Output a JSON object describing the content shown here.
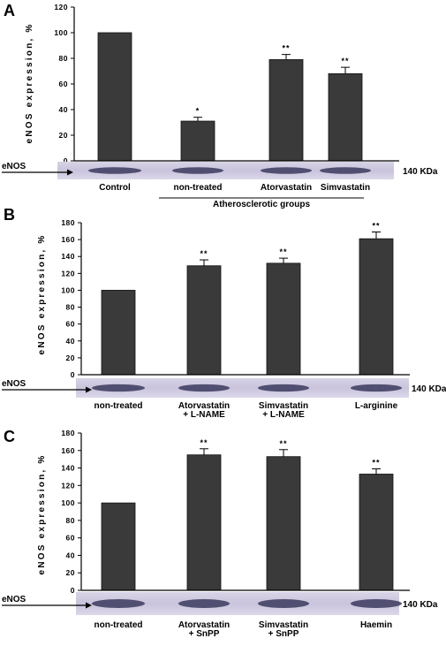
{
  "chart_data": [
    {
      "type": "bar",
      "panel": "A",
      "ylabel": "eNOS expression, %",
      "ylim": [
        0,
        120
      ],
      "yticks": [
        0,
        20,
        40,
        60,
        80,
        100,
        120
      ],
      "categories": [
        "Control",
        "non-treated",
        "Atorvastatin",
        "Simvastatin"
      ],
      "values": [
        100,
        31,
        79,
        68
      ],
      "errors": [
        0,
        3,
        4,
        5
      ],
      "significance": [
        "",
        "*",
        "**",
        "**"
      ],
      "group_label": "Atherosclerotic groups",
      "blot_label": "eNOS",
      "kda_label": "140 KDa",
      "bar_color": "#3a3a3a"
    },
    {
      "type": "bar",
      "panel": "B",
      "ylabel": "eNOS expression, %",
      "ylim": [
        0,
        180
      ],
      "yticks": [
        0,
        20,
        40,
        60,
        80,
        100,
        120,
        140,
        160,
        180
      ],
      "categories": [
        [
          "non-treated"
        ],
        [
          "Atorvastatin",
          "+ L-NAME"
        ],
        [
          "Simvastatin",
          "+ L-NAME"
        ],
        [
          "L-arginine"
        ]
      ],
      "values": [
        100,
        129,
        132,
        161
      ],
      "errors": [
        0,
        7,
        6,
        8
      ],
      "significance": [
        "",
        "**",
        "**",
        "**"
      ],
      "blot_label": "eNOS",
      "kda_label": "140 KDa",
      "bar_color": "#3a3a3a"
    },
    {
      "type": "bar",
      "panel": "C",
      "ylabel": "eNOS expression, %",
      "ylim": [
        0,
        180
      ],
      "yticks": [
        0,
        20,
        40,
        60,
        80,
        100,
        120,
        140,
        160,
        180
      ],
      "categories": [
        [
          "non-treated"
        ],
        [
          "Atorvastatin",
          "+ SnPP"
        ],
        [
          "Simvastatin",
          "+ SnPP"
        ],
        [
          "Haemin"
        ]
      ],
      "values": [
        100,
        155,
        153,
        133
      ],
      "errors": [
        0,
        7,
        8,
        6
      ],
      "significance": [
        "",
        "**",
        "**",
        "**"
      ],
      "blot_label": "eNOS",
      "kda_label": "140 KDa",
      "bar_color": "#3a3a3a"
    }
  ]
}
